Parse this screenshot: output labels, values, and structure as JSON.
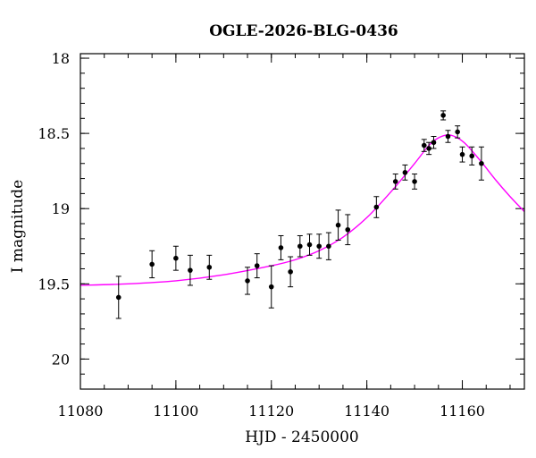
{
  "chart_data": {
    "type": "scatter",
    "title": "OGLE-2026-BLG-0436",
    "xlabel": "HJD - 2450000",
    "ylabel": "I magnitude",
    "xlim": [
      11080,
      11173
    ],
    "ylim": [
      20.2,
      17.97
    ],
    "y_inverted": true,
    "x_ticks": [
      11080,
      11100,
      11120,
      11140,
      11160
    ],
    "y_ticks": [
      18,
      18.5,
      19,
      19.5,
      20
    ],
    "x_tick_labels": [
      "11080",
      "11100",
      "11120",
      "11140",
      "11160"
    ],
    "y_tick_labels": [
      "18",
      "18.5",
      "19",
      "19.5",
      "20"
    ],
    "x_minor_step": 5,
    "y_minor_step": 0.1,
    "grid": false,
    "model_color": "#ff00ff",
    "point_color": "#000000",
    "series": [
      {
        "type": "scatter-errorbars",
        "points": [
          {
            "x": 11088,
            "y": 19.59,
            "err": 0.14
          },
          {
            "x": 11095,
            "y": 19.37,
            "err": 0.09
          },
          {
            "x": 11100,
            "y": 19.33,
            "err": 0.08
          },
          {
            "x": 11103,
            "y": 19.41,
            "err": 0.1
          },
          {
            "x": 11107,
            "y": 19.39,
            "err": 0.08
          },
          {
            "x": 11115,
            "y": 19.48,
            "err": 0.09
          },
          {
            "x": 11117,
            "y": 19.38,
            "err": 0.08
          },
          {
            "x": 11120,
            "y": 19.52,
            "err": 0.14
          },
          {
            "x": 11122,
            "y": 19.26,
            "err": 0.08
          },
          {
            "x": 11124,
            "y": 19.42,
            "err": 0.1
          },
          {
            "x": 11126,
            "y": 19.25,
            "err": 0.07
          },
          {
            "x": 11128,
            "y": 19.24,
            "err": 0.07
          },
          {
            "x": 11130,
            "y": 19.25,
            "err": 0.08
          },
          {
            "x": 11132,
            "y": 19.25,
            "err": 0.09
          },
          {
            "x": 11134,
            "y": 19.11,
            "err": 0.1
          },
          {
            "x": 11136,
            "y": 19.14,
            "err": 0.1
          },
          {
            "x": 11142,
            "y": 18.99,
            "err": 0.07
          },
          {
            "x": 11146,
            "y": 18.82,
            "err": 0.05
          },
          {
            "x": 11148,
            "y": 18.76,
            "err": 0.05
          },
          {
            "x": 11150,
            "y": 18.82,
            "err": 0.05
          },
          {
            "x": 11152,
            "y": 18.58,
            "err": 0.04
          },
          {
            "x": 11153,
            "y": 18.6,
            "err": 0.04
          },
          {
            "x": 11154,
            "y": 18.56,
            "err": 0.04
          },
          {
            "x": 11156,
            "y": 18.38,
            "err": 0.03
          },
          {
            "x": 11157,
            "y": 18.52,
            "err": 0.04
          },
          {
            "x": 11159,
            "y": 18.49,
            "err": 0.04
          },
          {
            "x": 11160,
            "y": 18.64,
            "err": 0.05
          },
          {
            "x": 11162,
            "y": 18.65,
            "err": 0.06
          },
          {
            "x": 11164,
            "y": 18.7,
            "err": 0.11
          }
        ]
      },
      {
        "type": "line",
        "points": [
          {
            "x": 11080,
            "y": 19.51
          },
          {
            "x": 11090,
            "y": 19.5
          },
          {
            "x": 11100,
            "y": 19.48
          },
          {
            "x": 11110,
            "y": 19.44
          },
          {
            "x": 11120,
            "y": 19.38
          },
          {
            "x": 11125,
            "y": 19.34
          },
          {
            "x": 11130,
            "y": 19.28
          },
          {
            "x": 11135,
            "y": 19.19
          },
          {
            "x": 11140,
            "y": 19.06
          },
          {
            "x": 11145,
            "y": 18.89
          },
          {
            "x": 11150,
            "y": 18.7
          },
          {
            "x": 11153,
            "y": 18.58
          },
          {
            "x": 11155,
            "y": 18.53
          },
          {
            "x": 11157,
            "y": 18.51
          },
          {
            "x": 11159,
            "y": 18.53
          },
          {
            "x": 11161,
            "y": 18.58
          },
          {
            "x": 11164,
            "y": 18.69
          },
          {
            "x": 11167,
            "y": 18.81
          },
          {
            "x": 11170,
            "y": 18.92
          },
          {
            "x": 11173,
            "y": 19.02
          }
        ]
      }
    ]
  }
}
